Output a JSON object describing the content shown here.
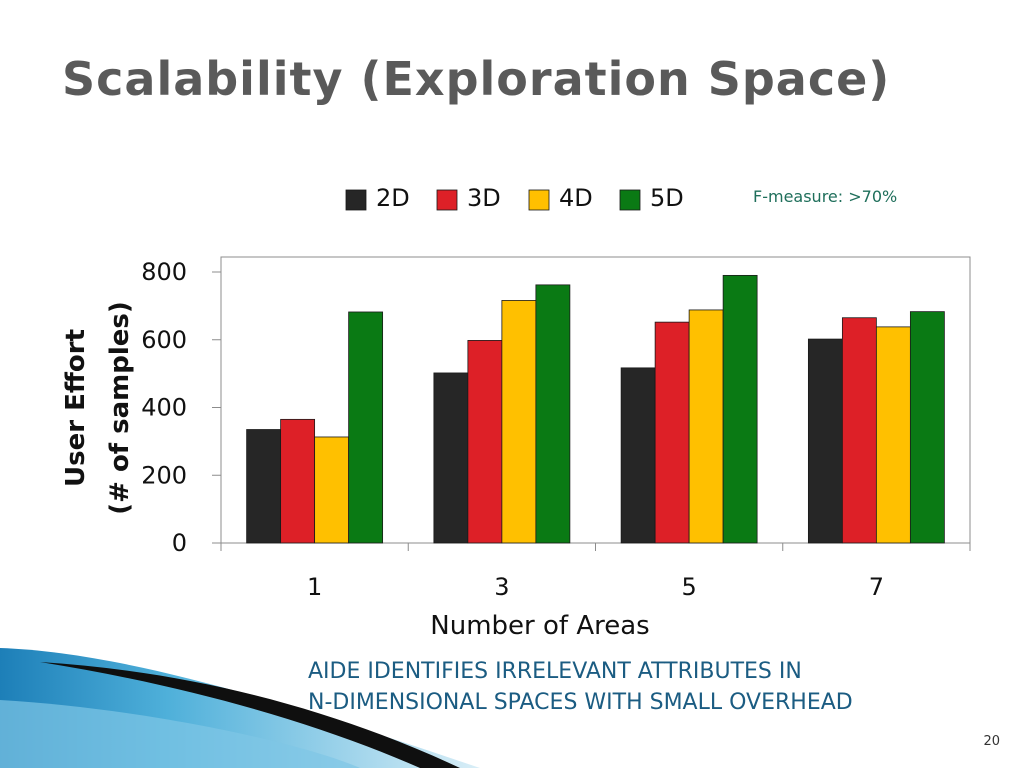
{
  "slide": {
    "title": "Scalability (Exploration Space)",
    "caption_line1": "AIDE IDENTIFIES IRRELEVANT ATTRIBUTES IN",
    "caption_line2": "N-DIMENSIONAL SPACES WITH SMALL OVERHEAD",
    "page_number": "20",
    "note": "F-measure: >70%"
  },
  "chart_data": {
    "type": "bar",
    "title": "",
    "xlabel": "Number of Areas",
    "ylabel_line1": "User Effort",
    "ylabel_line2": "(# of samples)",
    "categories": [
      "1",
      "3",
      "5",
      "7"
    ],
    "ylim": [
      0,
      800
    ],
    "yticks": [
      0,
      200,
      400,
      600,
      800
    ],
    "grid": false,
    "legend_position": "top",
    "series": [
      {
        "name": "2D",
        "color": "#262626",
        "values": [
          335,
          502,
          517,
          602
        ]
      },
      {
        "name": "3D",
        "color": "#dd2027",
        "values": [
          365,
          598,
          652,
          665
        ]
      },
      {
        "name": "4D",
        "color": "#ffc000",
        "values": [
          313,
          716,
          688,
          638
        ]
      },
      {
        "name": "5D",
        "color": "#0a7a14",
        "values": [
          682,
          762,
          790,
          683
        ]
      }
    ]
  }
}
